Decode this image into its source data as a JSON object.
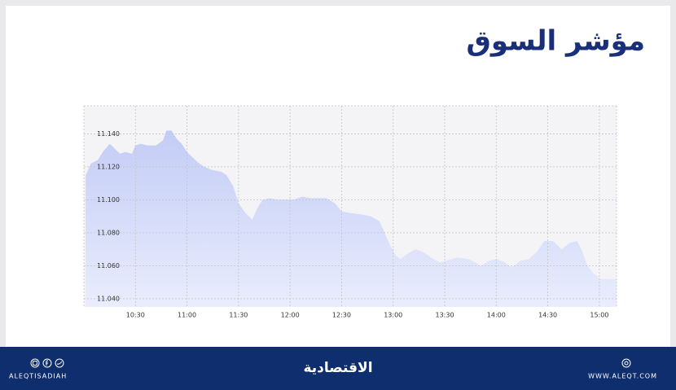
{
  "chart_data": {
    "type": "area",
    "title": "مؤشر السوق",
    "x": [
      601,
      604,
      608,
      611,
      615,
      617,
      621,
      624,
      628,
      630,
      633,
      637,
      642,
      646,
      648,
      651,
      654,
      657,
      660,
      663,
      666,
      670,
      675,
      680,
      683,
      687,
      690,
      694,
      698,
      701,
      704,
      708,
      713,
      717,
      722,
      727,
      732,
      737,
      741,
      746,
      750,
      755,
      762,
      767,
      772,
      775,
      778,
      781,
      784,
      788,
      793,
      798,
      802,
      807,
      811,
      817,
      824,
      831,
      836,
      840,
      845,
      849,
      854,
      859,
      864,
      868,
      873,
      878,
      883,
      887,
      890,
      893,
      897,
      901,
      910
    ],
    "values": [
      11.1146,
      11.122,
      11.124,
      11.129,
      11.134,
      11.132,
      11.128,
      11.129,
      11.128,
      11.133,
      11.134,
      11.133,
      11.133,
      11.136,
      11.142,
      11.142,
      11.137,
      11.134,
      11.129,
      11.126,
      11.123,
      11.12,
      11.118,
      11.117,
      11.115,
      11.108,
      11.098,
      11.092,
      11.088,
      11.095,
      11.1,
      11.101,
      11.1,
      11.1,
      11.1,
      11.102,
      11.101,
      11.101,
      11.101,
      11.098,
      11.093,
      11.092,
      11.091,
      11.09,
      11.087,
      11.08,
      11.073,
      11.067,
      11.064,
      11.067,
      11.07,
      11.068,
      11.065,
      11.062,
      11.063,
      11.065,
      11.064,
      11.06,
      11.063,
      11.064,
      11.062,
      11.059,
      11.063,
      11.064,
      11.069,
      11.075,
      11.075,
      11.07,
      11.074,
      11.075,
      11.069,
      11.06,
      11.055,
      11.052,
      11.052
    ],
    "color": "#c3ccf6",
    "xlim": [
      600,
      910
    ],
    "xticks": [
      {
        "value": 630,
        "label": "10:30"
      },
      {
        "value": 660,
        "label": "11:00"
      },
      {
        "value": 690,
        "label": "11:30"
      },
      {
        "value": 720,
        "label": "12:00"
      },
      {
        "value": 750,
        "label": "12:30"
      },
      {
        "value": 780,
        "label": "13:00"
      },
      {
        "value": 810,
        "label": "13:30"
      },
      {
        "value": 840,
        "label": "14:00"
      },
      {
        "value": 870,
        "label": "14:30"
      },
      {
        "value": 900,
        "label": "15:00"
      }
    ],
    "ylim": [
      11.035,
      11.157
    ],
    "yticks": [
      {
        "value": 11.04,
        "label": "11.040"
      },
      {
        "value": 11.06,
        "label": "11.060"
      },
      {
        "value": 11.08,
        "label": "11.080"
      },
      {
        "value": 11.1,
        "label": "11.100"
      },
      {
        "value": 11.12,
        "label": "11.120"
      },
      {
        "value": 11.14,
        "label": "11.140"
      }
    ],
    "grid": true
  },
  "footer": {
    "social_handle": "ALEQTISADIAH",
    "logo": "الاقتصادية",
    "website": "WWW.ALEQT.COM"
  }
}
